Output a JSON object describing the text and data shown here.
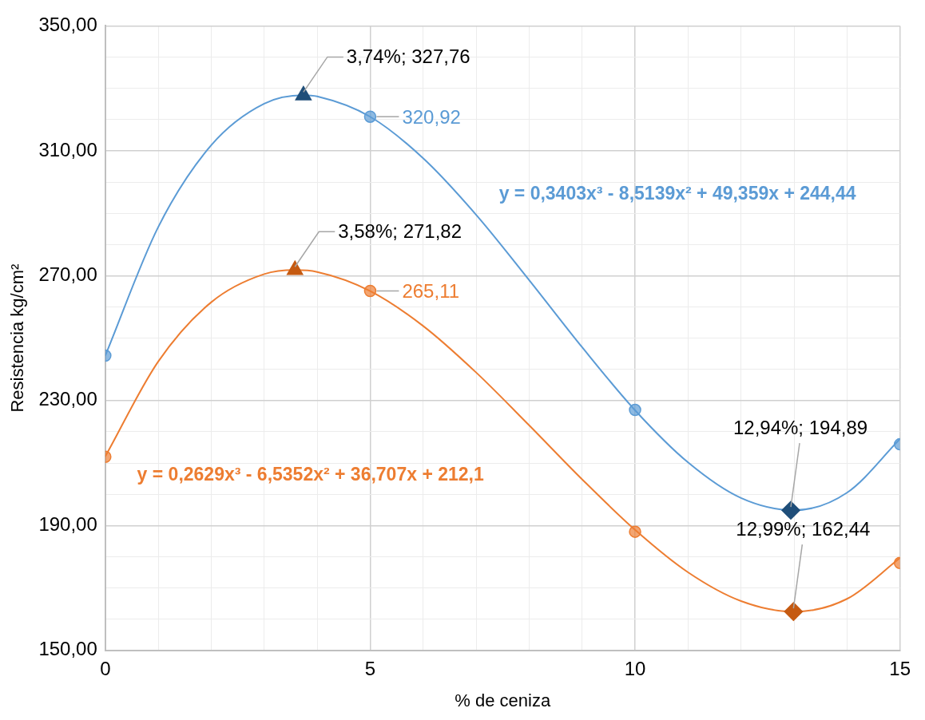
{
  "chart_data": {
    "type": "line",
    "xlabel": "% de ceniza",
    "ylabel": "Resistencia kg/cm²",
    "xlim": [
      0,
      15
    ],
    "xticks": [
      0,
      {
        "value": 1,
        "label": null
      },
      {
        "value": 2,
        "label": null
      },
      {
        "value": 3,
        "label": null
      },
      {
        "value": 4,
        "label": null
      },
      5,
      {
        "value": 6,
        "label": null
      },
      {
        "value": 7,
        "label": null
      },
      {
        "value": 8,
        "label": null
      },
      {
        "value": 9,
        "label": null
      },
      10,
      {
        "value": 11,
        "label": null
      },
      {
        "value": 12,
        "label": null
      },
      {
        "value": 13,
        "label": null
      },
      {
        "value": 14,
        "label": null
      },
      15
    ],
    "ylim": [
      150,
      350
    ],
    "yticks": [
      {
        "value": 150,
        "label": "150,00"
      },
      {
        "value": 160,
        "label": null
      },
      {
        "value": 170,
        "label": null
      },
      {
        "value": 180,
        "label": null
      },
      {
        "value": 190,
        "label": "190,00"
      },
      {
        "value": 200,
        "label": null
      },
      {
        "value": 210,
        "label": null
      },
      {
        "value": 220,
        "label": null
      },
      {
        "value": 230,
        "label": "230,00"
      },
      {
        "value": 240,
        "label": null
      },
      {
        "value": 250,
        "label": null
      },
      {
        "value": 260,
        "label": null
      },
      {
        "value": 270,
        "label": "270,00"
      },
      {
        "value": 280,
        "label": null
      },
      {
        "value": 290,
        "label": null
      },
      {
        "value": 300,
        "label": null
      },
      {
        "value": 310,
        "label": "310,00"
      },
      {
        "value": 320,
        "label": null
      },
      {
        "value": 330,
        "label": null
      },
      {
        "value": 340,
        "label": null
      },
      {
        "value": 350,
        "label": "350,00"
      }
    ],
    "grid": true,
    "legend": false,
    "series": [
      {
        "marker": "none",
        "color": "#5b9bd5",
        "x": [
          0,
          1,
          2,
          3,
          3.74,
          4,
          5,
          6,
          7,
          8,
          9,
          10,
          11,
          12,
          13,
          14,
          15
        ],
        "values": [
          244.4,
          285.6,
          311.8,
          325.1,
          327.8,
          327.4,
          320.9,
          307.6,
          289.5,
          268.6,
          247.1,
          226.9,
          210.2,
          198.8,
          194.9,
          200.5,
          217.7
        ]
      },
      {
        "marker": "none",
        "color": "#ed7d31",
        "x": [
          0,
          1,
          2,
          3,
          3.58,
          4,
          5,
          6,
          7,
          8,
          9,
          10,
          11,
          12,
          13,
          14,
          15
        ],
        "values": [
          212.1,
          242.5,
          261.5,
          270.5,
          271.8,
          271.2,
          265.1,
          253.9,
          239,
          222.1,
          204.8,
          188.6,
          175,
          165.8,
          162.4,
          166.5,
          179.6
        ]
      },
      {
        "type": "scatter",
        "marker": "circle",
        "color": "#5b9bd5",
        "x": [
          0,
          5,
          10,
          15
        ],
        "values": [
          244.4,
          320.92,
          227,
          216
        ],
        "value_labels": [
          null,
          "320,92",
          null,
          null
        ]
      },
      {
        "type": "scatter",
        "marker": "circle",
        "color": "#ed7d31",
        "x": [
          0,
          5,
          10,
          15
        ],
        "values": [
          212,
          265.11,
          188,
          178
        ],
        "value_labels": [
          null,
          "265,11",
          null,
          null
        ]
      },
      {
        "type": "scatter",
        "marker": "triangle",
        "color": "#1f4e79",
        "x": [
          3.74
        ],
        "values": [
          327.76
        ],
        "value_labels": [
          "3,74%; 327,76"
        ]
      },
      {
        "type": "scatter",
        "marker": "diamond",
        "color": "#1f4e79",
        "x": [
          12.94
        ],
        "values": [
          194.89
        ],
        "value_labels": [
          "12,94%; 194,89"
        ]
      },
      {
        "type": "scatter",
        "marker": "triangle",
        "color": "#c55a11",
        "x": [
          3.58
        ],
        "values": [
          271.82
        ],
        "value_labels": [
          "3,58%; 271,82"
        ]
      },
      {
        "type": "scatter",
        "marker": "diamond",
        "color": "#c55a11",
        "x": [
          12.99
        ],
        "values": [
          162.44
        ],
        "value_labels": [
          "12,99%; 162,44"
        ]
      }
    ],
    "annotations": [
      "y = 0,3403x³ - 8,5139x² + 49,359x + 244,44",
      "y = 0,2629x³ - 6,5352x² + 36,707x + 212,1"
    ]
  }
}
